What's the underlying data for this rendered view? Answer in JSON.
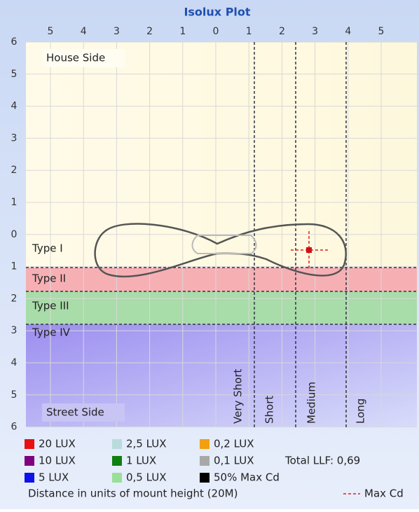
{
  "title": "Isolux Plot",
  "top_ticks": [
    "5",
    "4",
    "3",
    "2",
    "1",
    "0",
    "1",
    "2",
    "3",
    "4",
    "5"
  ],
  "left_ticks": [
    "6",
    "5",
    "4",
    "3",
    "2",
    "1",
    "0",
    "1",
    "2",
    "3",
    "4",
    "5",
    "6"
  ],
  "house_side": "House Side",
  "street_side": "Street Side",
  "types": [
    "Type I",
    "Type II",
    "Type III",
    "Type IV"
  ],
  "distances": [
    "Very Short",
    "Short",
    "Medium",
    "Long"
  ],
  "legend": [
    {
      "label": "20 LUX",
      "color": "#e81010"
    },
    {
      "label": "2,5 LUX",
      "color": "#b8dcdc"
    },
    {
      "label": "0,2 LUX",
      "color": "#f0a010"
    },
    {
      "label": "10 LUX",
      "color": "#800080"
    },
    {
      "label": "1 LUX",
      "color": "#108010"
    },
    {
      "label": "0,1 LUX",
      "color": "#a8a8a8"
    },
    {
      "label": "5 LUX",
      "color": "#1010e8"
    },
    {
      "label": "0,5 LUX",
      "color": "#98e098"
    },
    {
      "label": "50% Max Cd",
      "color": "#000000"
    }
  ],
  "total_llf": "Total LLF: 0,69",
  "footer": "Distance in units of mount height (20M)",
  "max_cd": "Max Cd"
}
